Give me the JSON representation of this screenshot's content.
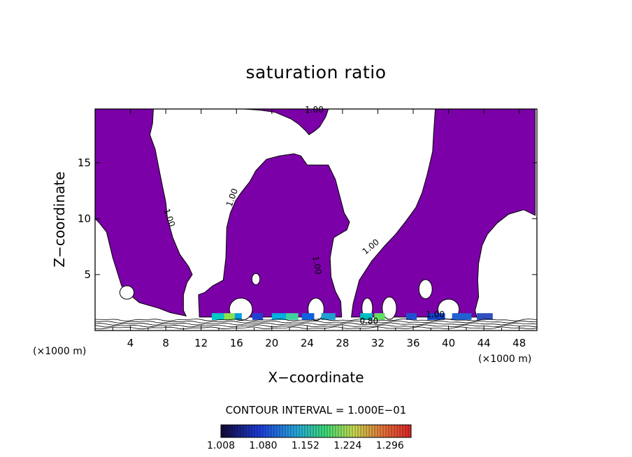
{
  "chart_data": {
    "type": "contour",
    "title": "saturation ratio",
    "xlabel": "X−coordinate",
    "ylabel": "Z−coordinate",
    "x_unit": "(×1000 m)",
    "z_unit": "(×1000 m)",
    "xlim": [
      0,
      50
    ],
    "ylim": [
      0,
      19.8
    ],
    "x_ticks": [
      4,
      8,
      12,
      16,
      20,
      24,
      28,
      32,
      36,
      40,
      44,
      48
    ],
    "y_ticks": [
      5,
      10,
      15
    ],
    "contour_interval_text": "CONTOUR INTERVAL = 1.000E−01",
    "contour_labels": [
      {
        "text": "1.00",
        "x": 24.8,
        "z": 19.5,
        "angle": 0
      },
      {
        "text": "1.00",
        "x": 8.1,
        "z": 10.0,
        "angle": 70
      },
      {
        "text": "1.00",
        "x": 15.8,
        "z": 11.8,
        "angle": -70
      },
      {
        "text": "1.00",
        "x": 24.8,
        "z": 5.8,
        "angle": 80
      },
      {
        "text": "1.00",
        "x": 31.4,
        "z": 7.3,
        "angle": -40
      },
      {
        "text": "1.00",
        "x": 38.5,
        "z": 1.2,
        "angle": 0
      },
      {
        "text": "0.80",
        "x": 31.0,
        "z": 0.6,
        "angle": 0
      }
    ],
    "fill_threshold": 1.0,
    "fill_color": "#7b00a8",
    "colorbar": {
      "ticks": [
        "1.008",
        "1.080",
        "1.152",
        "1.224",
        "1.296"
      ],
      "min": 1.008,
      "max": 1.332
    },
    "regions": [
      {
        "name": "left-column",
        "boundary": [
          [
            0,
            19.8
          ],
          [
            6.6,
            19.8
          ],
          [
            6.5,
            18.5
          ],
          [
            6.2,
            17.5
          ],
          [
            6.8,
            16.2
          ],
          [
            7.2,
            14.6
          ],
          [
            7.6,
            13
          ],
          [
            8.0,
            11.5
          ],
          [
            8.2,
            10
          ],
          [
            8.8,
            8.3
          ],
          [
            9.6,
            6.8
          ],
          [
            10.6,
            5.7
          ],
          [
            11.0,
            5.0
          ],
          [
            10.4,
            4.3
          ],
          [
            10.0,
            3.2
          ],
          [
            10.0,
            1.8
          ],
          [
            10.3,
            1.3
          ],
          [
            8.5,
            1.6
          ],
          [
            7.2,
            2.0
          ],
          [
            5.0,
            2.5
          ],
          [
            3.5,
            3.5
          ],
          [
            3.0,
            4.0
          ],
          [
            2.0,
            6.5
          ],
          [
            1.3,
            8.8
          ],
          [
            0.5,
            9.6
          ],
          [
            0,
            10.0
          ]
        ]
      },
      {
        "name": "top-center-column",
        "boundary": [
          [
            16.8,
            19.8
          ],
          [
            26.4,
            19.8
          ],
          [
            26.1,
            19.1
          ],
          [
            25.4,
            18.2
          ],
          [
            24.8,
            17.8
          ],
          [
            24.2,
            17.5
          ],
          [
            23.9,
            17.8
          ],
          [
            23.1,
            18.4
          ],
          [
            22.2,
            18.9
          ],
          [
            20.4,
            19.5
          ],
          [
            18.7,
            19.7
          ],
          [
            16.8,
            19.8
          ]
        ]
      },
      {
        "name": "center-column",
        "boundary": [
          [
            20.8,
            15.6
          ],
          [
            22.5,
            15.8
          ],
          [
            23.3,
            15.6
          ],
          [
            24.0,
            14.8
          ],
          [
            26.4,
            14.8
          ],
          [
            27.2,
            13.5
          ],
          [
            27.7,
            12
          ],
          [
            28.2,
            10.5
          ],
          [
            28.8,
            9.7
          ],
          [
            28.5,
            9.0
          ],
          [
            27.0,
            8.3
          ],
          [
            26.6,
            6.5
          ],
          [
            26.7,
            4.8
          ],
          [
            27.2,
            3.5
          ],
          [
            27.8,
            2.6
          ],
          [
            27.9,
            1.2
          ],
          [
            11.8,
            1.2
          ],
          [
            11.7,
            3.2
          ],
          [
            12.4,
            3.4
          ],
          [
            13.3,
            4.0
          ],
          [
            14.5,
            4.5
          ],
          [
            14.8,
            6.5
          ],
          [
            14.9,
            9.2
          ],
          [
            15.3,
            10.5
          ],
          [
            15.9,
            11.6
          ],
          [
            16.5,
            12.3
          ],
          [
            17.5,
            13.3
          ],
          [
            18.2,
            14.3
          ],
          [
            19.4,
            15.3
          ],
          [
            20.8,
            15.6
          ]
        ]
      },
      {
        "name": "right-column",
        "boundary": [
          [
            38.5,
            19.8
          ],
          [
            49.8,
            19.8
          ],
          [
            49.8,
            10.3
          ],
          [
            48.5,
            10.8
          ],
          [
            46.8,
            10.4
          ],
          [
            45.5,
            9.6
          ],
          [
            44.4,
            8.6
          ],
          [
            43.8,
            7.6
          ],
          [
            43.4,
            6.0
          ],
          [
            43.3,
            4.5
          ],
          [
            43.4,
            3.0
          ],
          [
            43.0,
            1.8
          ],
          [
            43.2,
            1.2
          ],
          [
            29.0,
            1.2
          ],
          [
            29.2,
            2.4
          ],
          [
            29.9,
            4.5
          ],
          [
            31.3,
            6.2
          ],
          [
            32.8,
            7.6
          ],
          [
            34.0,
            8.6
          ],
          [
            35.2,
            9.8
          ],
          [
            36.3,
            11.0
          ],
          [
            37.0,
            12.3
          ],
          [
            37.6,
            14.0
          ],
          [
            38.2,
            16.0
          ],
          [
            38.3,
            17.5
          ],
          [
            38.5,
            19.8
          ]
        ]
      }
    ],
    "holes": [
      {
        "name": "left-bubble",
        "center": [
          3.6,
          3.4
        ],
        "r": [
          0.8,
          0.6
        ]
      },
      {
        "name": "center-bubble",
        "center": [
          18.2,
          4.6
        ],
        "r": [
          0.45,
          0.5
        ]
      },
      {
        "name": "center-left-hole",
        "center": [
          16.5,
          1.9
        ],
        "r": [
          1.3,
          1.0
        ]
      },
      {
        "name": "center-right-hole",
        "center": [
          25.0,
          1.9
        ],
        "r": [
          0.9,
          1.0
        ]
      },
      {
        "name": "right-bubble",
        "center": [
          37.4,
          3.7
        ],
        "r": [
          0.75,
          0.85
        ]
      },
      {
        "name": "right-hole-1",
        "center": [
          33.3,
          2.0
        ],
        "r": [
          0.8,
          1.0
        ]
      },
      {
        "name": "right-hole-2",
        "center": [
          40.0,
          1.9
        ],
        "r": [
          1.2,
          0.9
        ]
      },
      {
        "name": "right-hole-3",
        "center": [
          30.8,
          2.0
        ],
        "r": [
          0.6,
          0.9
        ]
      }
    ]
  }
}
